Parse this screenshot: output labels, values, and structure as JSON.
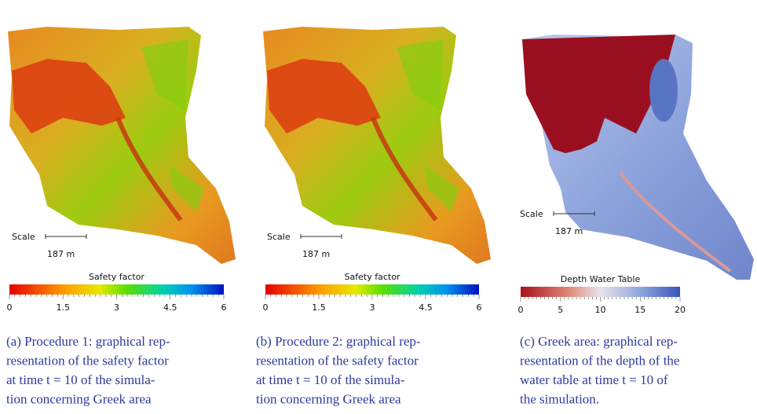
{
  "panels": [
    {
      "scale_label": "Scale",
      "scale_length": "187 m",
      "colorbar_title": "Safety factor",
      "colorbar_ticks": [
        "0",
        "1.5",
        "3",
        "4.5",
        "6"
      ],
      "caption": [
        "(a) Procedure 1: graphical rep-",
        "resentation of the safety factor",
        "at time t = 10 of the simula-",
        "tion concerning Greek area"
      ]
    },
    {
      "scale_label": "Scale",
      "scale_length": "187 m",
      "colorbar_title": "Safety factor",
      "colorbar_ticks": [
        "0",
        "1.5",
        "3",
        "4.5",
        "6"
      ],
      "caption": [
        "(b) Procedure 2: graphical rep-",
        "resentation of the safety factor",
        "at time t = 10 of the simula-",
        "tion concerning Greek area"
      ]
    },
    {
      "scale_label": "Scale",
      "scale_length": "187 m",
      "colorbar_title": "Depth Water Table",
      "colorbar_ticks": [
        "0",
        "5",
        "10",
        "15",
        "20"
      ],
      "caption": [
        "(c) Greek area: graphical rep-",
        "resentation of the depth of the",
        "water table at time t = 10 of",
        "the simulation."
      ]
    }
  ]
}
